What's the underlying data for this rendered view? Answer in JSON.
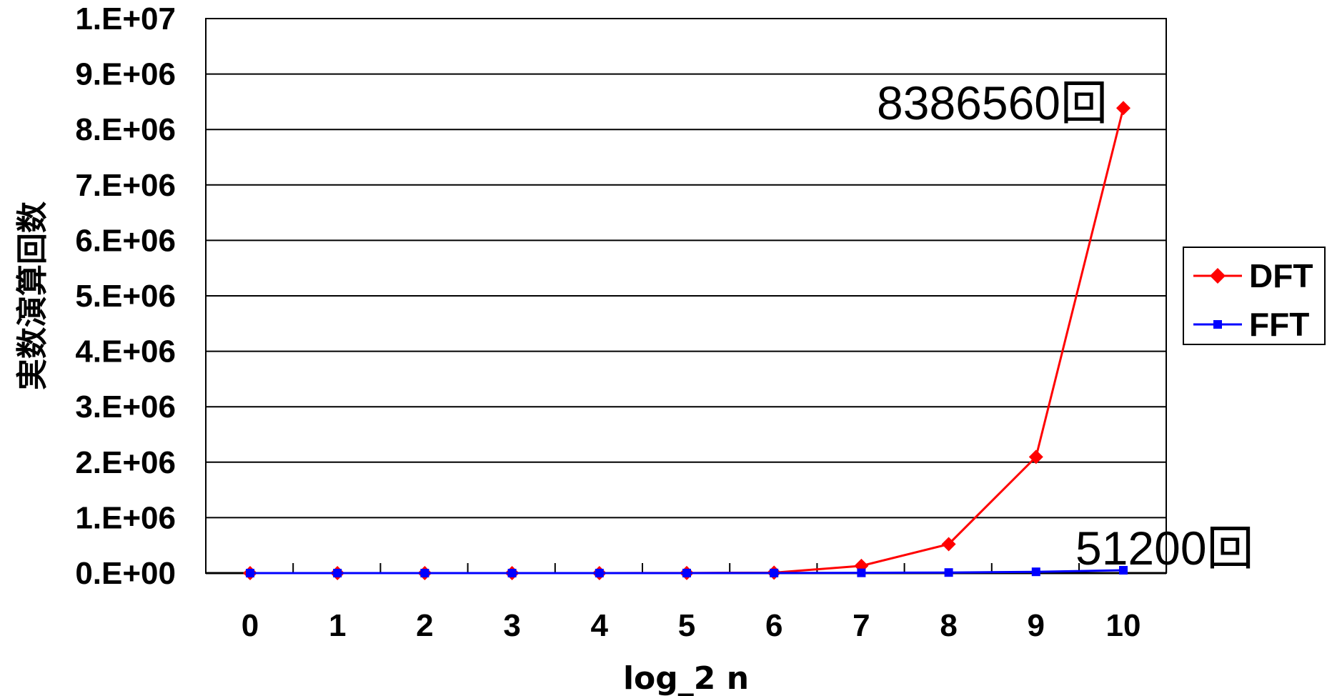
{
  "chart_data": {
    "type": "line",
    "title": "",
    "xlabel": "log_2 n",
    "ylabel": "実数演算回数",
    "categories": [
      "0",
      "1",
      "2",
      "3",
      "4",
      "5",
      "6",
      "7",
      "8",
      "9",
      "10"
    ],
    "x": [
      0,
      1,
      2,
      3,
      4,
      5,
      6,
      7,
      8,
      9,
      10
    ],
    "ylim": [
      0,
      10000000
    ],
    "yticks": [
      0,
      1000000,
      2000000,
      3000000,
      4000000,
      5000000,
      6000000,
      7000000,
      8000000,
      9000000,
      10000000
    ],
    "ytick_labels": [
      "0.E+00",
      "1.E+06",
      "2.E+06",
      "3.E+06",
      "4.E+06",
      "5.E+06",
      "6.E+06",
      "7.E+06",
      "8.E+06",
      "9.E+06",
      "1.E+07"
    ],
    "grid": true,
    "legend_position": "right",
    "series": [
      {
        "name": "DFT",
        "color": "#ff0000",
        "marker": "diamond",
        "values": [
          0,
          2,
          24,
          120,
          496,
          2016,
          8128,
          130816,
          522240,
          2095104,
          8386560
        ]
      },
      {
        "name": "FFT",
        "color": "#0000ff",
        "marker": "square",
        "values": [
          0,
          10,
          40,
          120,
          320,
          800,
          1920,
          4480,
          10240,
          23040,
          51200
        ]
      }
    ],
    "annotations": [
      {
        "text": "8386560回",
        "series": "DFT",
        "x": 10
      },
      {
        "text": "51200回",
        "series": "FFT",
        "x": 10
      }
    ]
  }
}
